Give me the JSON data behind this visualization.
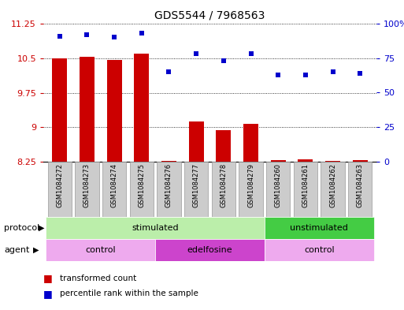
{
  "title": "GDS5544 / 7968563",
  "samples": [
    "GSM1084272",
    "GSM1084273",
    "GSM1084274",
    "GSM1084275",
    "GSM1084276",
    "GSM1084277",
    "GSM1084278",
    "GSM1084279",
    "GSM1084260",
    "GSM1084261",
    "GSM1084262",
    "GSM1084263"
  ],
  "transformed_count": [
    10.5,
    10.53,
    10.47,
    10.6,
    8.27,
    9.12,
    8.93,
    9.08,
    8.28,
    8.3,
    8.27,
    8.28
  ],
  "percentile_rank": [
    91,
    92,
    90,
    93,
    65,
    78,
    73,
    78,
    63,
    63,
    65,
    64
  ],
  "ylim_left": [
    8.25,
    11.25
  ],
  "ylim_right": [
    0,
    100
  ],
  "yticks_left": [
    8.25,
    9.0,
    9.75,
    10.5,
    11.25
  ],
  "yticks_left_labels": [
    "8.25",
    "9",
    "9.75",
    "10.5",
    "11.25"
  ],
  "yticks_right": [
    0,
    25,
    50,
    75,
    100
  ],
  "yticks_right_labels": [
    "0",
    "25",
    "50",
    "75",
    "100%"
  ],
  "bar_color": "#cc0000",
  "dot_color": "#0000cc",
  "protocol_groups": [
    {
      "label": "stimulated",
      "start": 0,
      "end": 7,
      "color": "#bbeeaa"
    },
    {
      "label": "unstimulated",
      "start": 8,
      "end": 11,
      "color": "#44cc44"
    }
  ],
  "agent_groups": [
    {
      "label": "control",
      "start": 0,
      "end": 3,
      "color": "#eeaaee"
    },
    {
      "label": "edelfosine",
      "start": 4,
      "end": 7,
      "color": "#cc44cc"
    },
    {
      "label": "control",
      "start": 8,
      "end": 11,
      "color": "#eeaaee"
    }
  ],
  "protocol_label": "protocol",
  "agent_label": "agent",
  "legend_bar_label": "transformed count",
  "legend_dot_label": "percentile rank within the sample",
  "bg_color": "#ffffff",
  "grid_color": "#000000",
  "tick_color_left": "#cc0000",
  "tick_color_right": "#0000cc",
  "xlabel_bg": "#cccccc",
  "xlabel_border": "#999999"
}
